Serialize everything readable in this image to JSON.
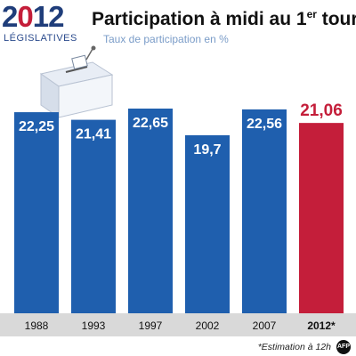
{
  "header": {
    "logo_year_prefix": "2",
    "logo_year_zero": "0",
    "logo_year_suffix": "12",
    "logo_subtitle": "LÉGISLATIVES",
    "title_main": "Participation à midi au 1",
    "title_sup": "er",
    "title_end": " tour",
    "subtitle": "Taux de participation en %"
  },
  "footer": {
    "note": "*Estimation à 12h",
    "icon": "afp-logo-icon"
  },
  "colors": {
    "historical": "#1f5fae",
    "highlight": "#c41e3a",
    "axis_band": "#d9d9d9"
  },
  "chart_data": {
    "type": "bar",
    "categories": [
      "1988",
      "1993",
      "1997",
      "2002",
      "2007",
      "2012*"
    ],
    "values": [
      22.25,
      21.41,
      22.65,
      19.7,
      22.56,
      21.06
    ],
    "labels": [
      "22,25",
      "21,41",
      "22,65",
      "19,7",
      "22,56",
      "21,06"
    ],
    "highlight_index": 5,
    "title": "Participation à midi au 1er tour",
    "subtitle": "Taux de participation en %",
    "xlabel": "",
    "ylabel": "",
    "grid": false
  }
}
